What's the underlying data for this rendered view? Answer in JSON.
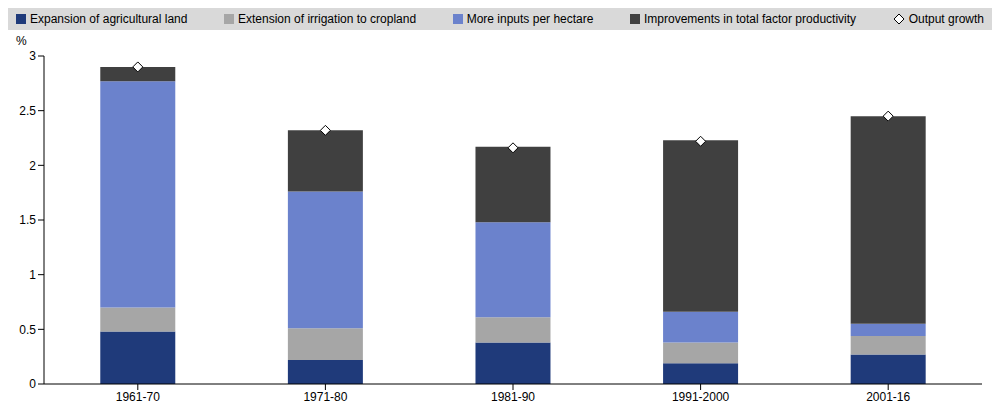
{
  "chart_data": {
    "type": "bar",
    "stacked": true,
    "legend": "top",
    "grid": false,
    "y_label": "%",
    "categories": [
      "1961-70",
      "1971-80",
      "1981-90",
      "1991-2000",
      "2001-16"
    ],
    "ylim": [
      0,
      3
    ],
    "yticks": [
      0,
      0.5,
      1,
      1.5,
      2,
      2.5,
      3
    ],
    "series": [
      {
        "name": "Expansion of agricultural land",
        "type": "bar",
        "color": "#1f3a7a",
        "values": [
          0.48,
          0.22,
          0.38,
          0.19,
          0.27
        ]
      },
      {
        "name": "Extension of irrigation to cropland",
        "type": "bar",
        "color": "#a6a6a6",
        "values": [
          0.22,
          0.29,
          0.23,
          0.19,
          0.17
        ]
      },
      {
        "name": "More inputs per hectare",
        "type": "bar",
        "color": "#6b82cc",
        "values": [
          2.07,
          1.25,
          0.87,
          0.28,
          0.11
        ]
      },
      {
        "name": "Improvements in total factor productivity",
        "type": "bar",
        "color": "#404040",
        "values": [
          0.13,
          0.56,
          0.69,
          1.57,
          1.9
        ]
      },
      {
        "name": "Output growth",
        "type": "scatter",
        "marker": "diamond",
        "color": "#ffffff",
        "values": [
          2.9,
          2.32,
          2.16,
          2.22,
          2.45
        ]
      }
    ]
  }
}
